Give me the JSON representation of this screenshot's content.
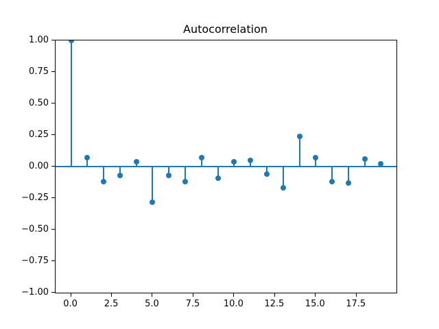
{
  "figure": {
    "background": "#ffffff"
  },
  "chart_data": {
    "type": "stem",
    "title": "Autocorrelation",
    "xlabel": "",
    "ylabel": "",
    "x": [
      0,
      1,
      2,
      3,
      4,
      5,
      6,
      7,
      8,
      9,
      10,
      11,
      12,
      13,
      14,
      15,
      16,
      17,
      18,
      19
    ],
    "values": [
      1.0,
      0.07,
      -0.12,
      -0.07,
      0.04,
      -0.28,
      -0.07,
      -0.12,
      0.07,
      -0.09,
      0.04,
      0.05,
      -0.06,
      -0.17,
      0.24,
      0.07,
      -0.12,
      -0.13,
      0.06,
      0.02
    ],
    "baseline_y": 0.0,
    "xlim": [
      -0.95,
      19.95
    ],
    "ylim": [
      -1.0,
      1.0
    ],
    "x_ticks": [
      0,
      2.5,
      5,
      7.5,
      10,
      12.5,
      15,
      17.5
    ],
    "x_tick_labels": [
      "0.0",
      "2.5",
      "5.0",
      "7.5",
      "10.0",
      "12.5",
      "15.0",
      "17.5"
    ],
    "y_ticks": [
      1.0,
      0.75,
      0.5,
      0.25,
      0.0,
      -0.25,
      -0.5,
      -0.75,
      -1.0
    ],
    "y_tick_labels": [
      "1.00",
      "0.75",
      "0.50",
      "0.25",
      "0.00",
      "−0.25",
      "−0.50",
      "−0.75",
      "−1.00"
    ],
    "grid": false,
    "legend": null,
    "marker_shape": "circle",
    "colors": {
      "stem": "#1f77b4",
      "marker": "#1f77b4",
      "baseline": "#1f77b4",
      "spine": "#000000",
      "text": "#000000"
    }
  }
}
